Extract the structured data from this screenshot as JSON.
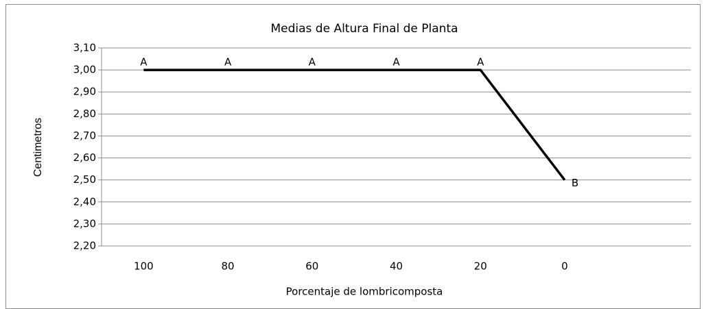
{
  "chart_data": {
    "type": "line",
    "title": "Medias de Altura Final de Planta",
    "x_label": "Porcentaje de lombricomposta",
    "y_label": "Centimetros",
    "categories": [
      "100",
      "80",
      "60",
      "40",
      "20",
      "0",
      null
    ],
    "series": [
      {
        "color": "#000000",
        "values": [
          3.0,
          3.0,
          3.0,
          3.0,
          3.0,
          2.5,
          null
        ]
      }
    ],
    "annotations": [
      "A",
      "A",
      "A",
      "A",
      "A",
      "B",
      null
    ],
    "ylim": [
      2.2,
      3.1
    ],
    "yticks": [
      {
        "value": 2.2,
        "label": "2,20"
      },
      {
        "value": 2.3,
        "label": "2,30"
      },
      {
        "value": 2.4,
        "label": "2,40"
      },
      {
        "value": 2.5,
        "label": "2,50"
      },
      {
        "value": 2.6,
        "label": "2,60"
      },
      {
        "value": 2.7,
        "label": "2,70"
      },
      {
        "value": 2.8,
        "label": "2,80"
      },
      {
        "value": 2.9,
        "label": "2,90"
      },
      {
        "value": 3.0,
        "label": "3,00"
      },
      {
        "value": 3.1,
        "label": "3,10"
      }
    ],
    "grid": true
  }
}
